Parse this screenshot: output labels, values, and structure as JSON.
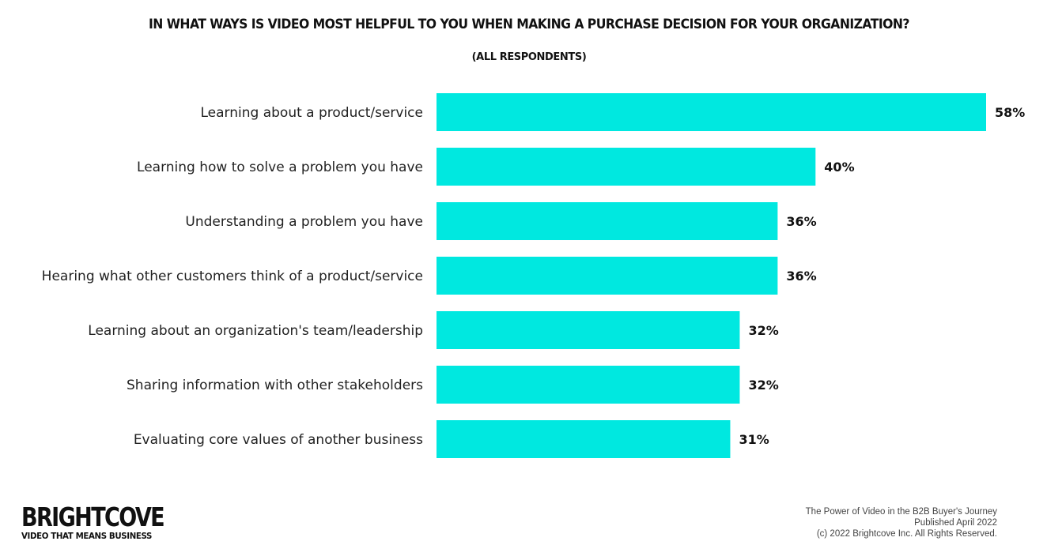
{
  "chart_data": {
    "type": "bar",
    "orientation": "horizontal",
    "title": "IN WHAT WAYS IS VIDEO MOST HELPFUL TO YOU WHEN MAKING A PURCHASE DECISION FOR YOUR ORGANIZATION?",
    "subtitle": "(ALL RESPONDENTS)",
    "categories": [
      "Learning about a product/service",
      "Learning how to solve a problem you have",
      "Understanding a problem you have",
      "Hearing what other customers think of a product/service",
      "Learning about an organization's team/leadership",
      "Sharing information with other stakeholders",
      "Evaluating core values of another business"
    ],
    "values": [
      58,
      40,
      36,
      36,
      32,
      32,
      31
    ],
    "value_labels": [
      "58%",
      "40%",
      "36%",
      "36%",
      "32%",
      "32%",
      "31%"
    ],
    "unit": "%",
    "xlim": [
      0,
      60
    ],
    "grid": false,
    "bar_color": "#00E8E0"
  },
  "brand": {
    "name": "BRIGHTCOVE",
    "tagline": "VIDEO THAT MEANS BUSINESS"
  },
  "footer": {
    "line1": "The Power of Video in the B2B Buyer's Journey",
    "line2": "Published April 2022",
    "line3": "(c) 2022 Brightcove Inc. All Rights Reserved."
  }
}
